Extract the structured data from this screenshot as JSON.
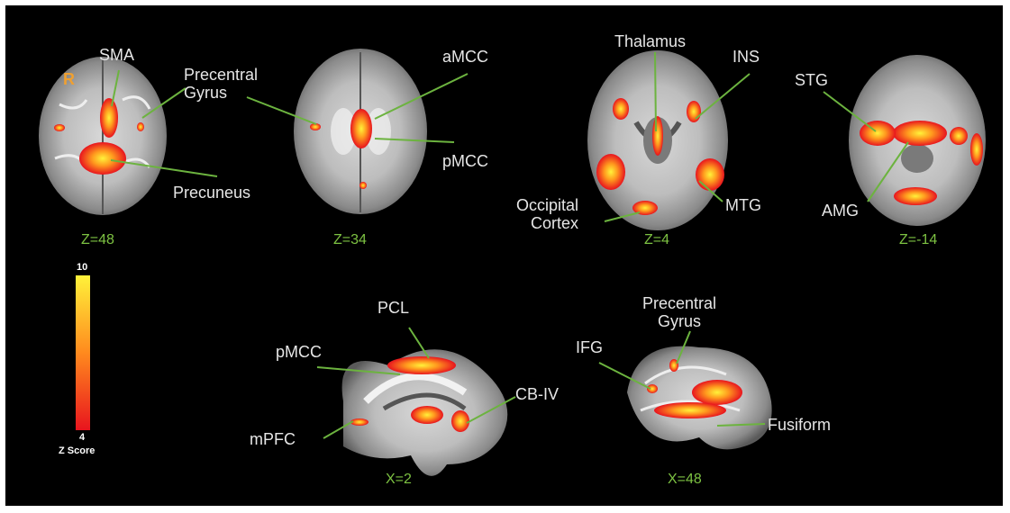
{
  "orientation_marker": "R",
  "labels": {
    "sma": "SMA",
    "precentral_gyrus_axial": [
      "Precentral",
      "Gyrus"
    ],
    "precuneus": "Precuneus",
    "amcc": "aMCC",
    "pmcc_axial": "pMCC",
    "thalamus": "Thalamus",
    "ins": "INS",
    "occipital_cortex": [
      "Occipital",
      "Cortex"
    ],
    "mtg": "MTG",
    "stg": "STG",
    "amg": "AMG",
    "pcl": "PCL",
    "pmcc_sagittal": "pMCC",
    "cb_iv": "CB-IV",
    "mpfc": "mPFC",
    "precentral_gyrus_sagittal": [
      "Precentral",
      "Gyrus"
    ],
    "ifg": "IFG",
    "fusiform": "Fusiform"
  },
  "slices": {
    "z48": "Z=48",
    "z34": "Z=34",
    "z4": "Z=4",
    "zm14": "Z=-14",
    "x2": "X=2",
    "x48": "X=48"
  },
  "colorbar": {
    "max": "10",
    "min": "4",
    "title": "Z Score",
    "color_low": "#e8141e",
    "color_high": "#fff23a"
  },
  "colors": {
    "background": "#000000",
    "label_text": "#e6e6e6",
    "slice_text": "#7dc242",
    "leader_line": "#6cb33f",
    "marker": "#f0a030"
  }
}
